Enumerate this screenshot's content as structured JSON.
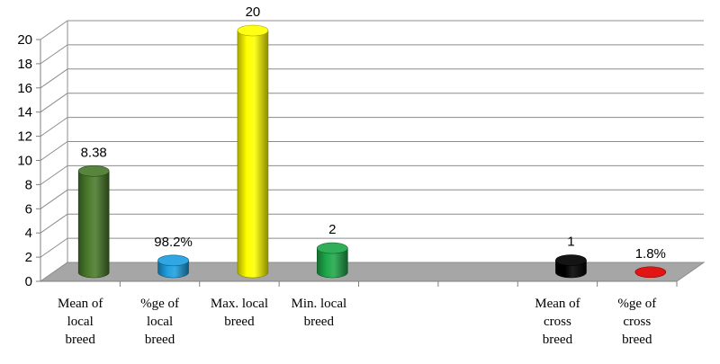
{
  "chart_data": {
    "type": "bar",
    "style": "3d-cylinder",
    "categories": [
      [
        "Mean of",
        "local",
        "breed"
      ],
      [
        "%ge of",
        "local",
        "breed"
      ],
      [
        "Max. local",
        "breed"
      ],
      [
        "Min. local",
        "breed"
      ],
      [],
      [],
      [
        "Mean of",
        "cross",
        "breed"
      ],
      [
        "%ge of",
        "cross",
        "breed"
      ]
    ],
    "values": [
      8.38,
      0.982,
      20,
      2,
      null,
      null,
      1,
      0.018
    ],
    "data_labels": [
      "8.38",
      "98.2%",
      "20",
      "2",
      "",
      "",
      "1",
      "1.8%"
    ],
    "colors": [
      "#4a7a2c",
      "#1e9fe0",
      "#ffff00",
      "#1fa84a",
      null,
      null,
      "#000000",
      "#e00000"
    ],
    "y_ticks": [
      "0",
      "2",
      "4",
      "6",
      "8",
      "10",
      "12",
      "14",
      "16",
      "18",
      "20"
    ],
    "ylim": [
      0,
      20
    ],
    "grid": true,
    "floor_color": "#a6a6a6",
    "title": "",
    "xlabel": "",
    "ylabel": ""
  }
}
